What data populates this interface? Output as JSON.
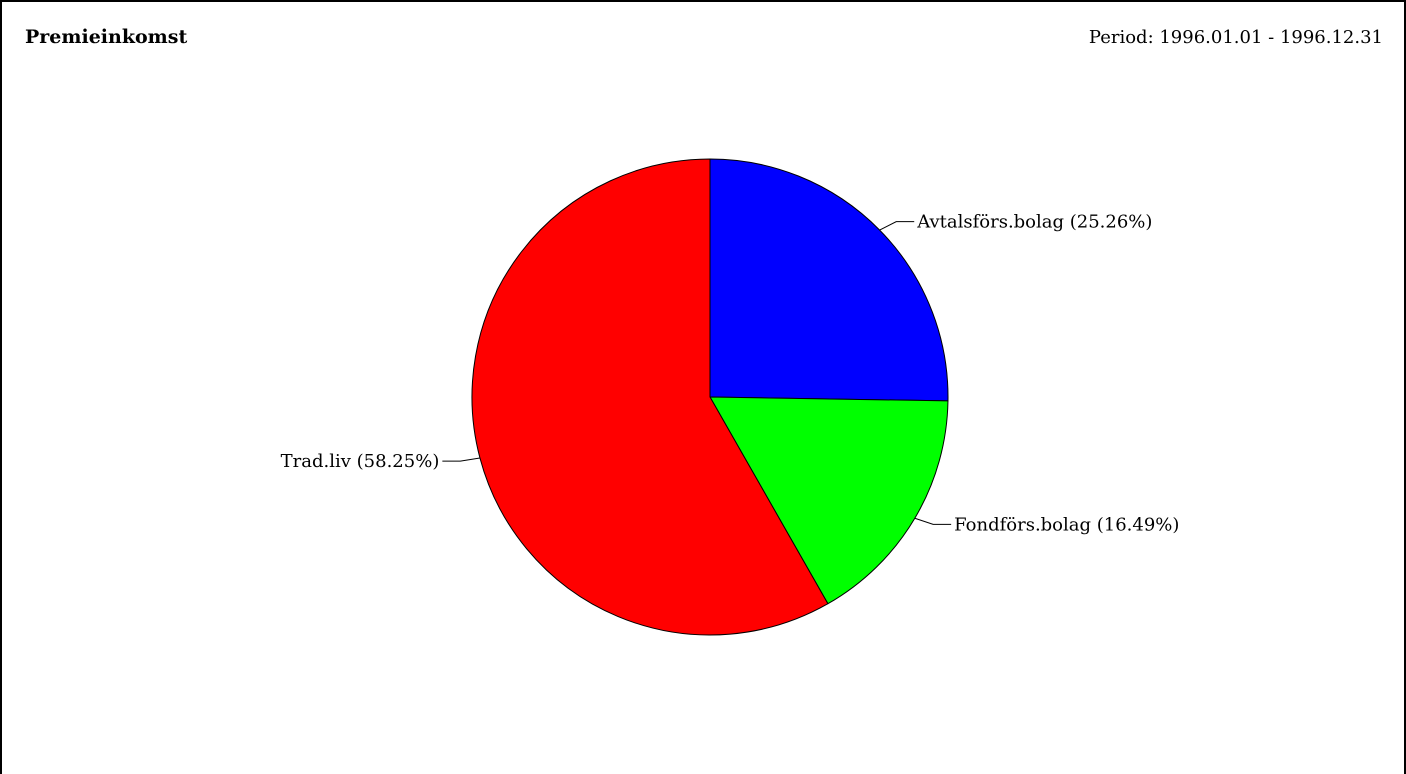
{
  "title": "Premieinkomst",
  "period": "Period: 1996.01.01 - 1996.12.31",
  "chart_data": {
    "type": "pie",
    "title": "Premieinkomst",
    "start": "top",
    "direction": "clockwise",
    "slices": [
      {
        "label": "Avtalsförs.bolag",
        "percent": 25.26,
        "display": "Avtalsförs.bolag (25.26%)",
        "color": "#0000ff"
      },
      {
        "label": "Fondförs.bolag",
        "percent": 16.49,
        "display": "Fondförs.bolag (16.49%)",
        "color": "#00ff00"
      },
      {
        "label": "Trad.liv",
        "percent": 58.25,
        "display": "Trad.liv (58.25%)",
        "color": "#ff0000"
      }
    ]
  }
}
